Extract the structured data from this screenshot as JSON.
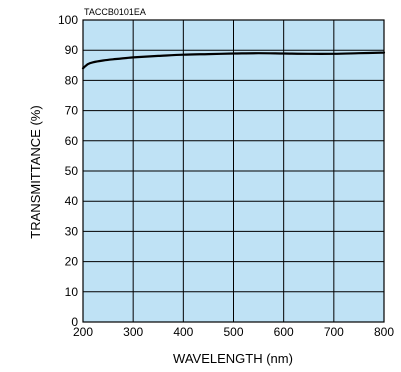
{
  "chart_data": {
    "type": "line",
    "code": "TACCB0101EA",
    "xlabel": "WAVELENGTH (nm)",
    "ylabel": "TRANSMITTANCE (%)",
    "xlim": [
      200,
      800
    ],
    "ylim": [
      0,
      100
    ],
    "xticks": [
      200,
      300,
      400,
      500,
      600,
      700,
      800
    ],
    "yticks": [
      0,
      10,
      20,
      30,
      40,
      50,
      60,
      70,
      80,
      90,
      100
    ],
    "grid": true,
    "legend": "none",
    "colors": {
      "plot_background": "#bfe2f5",
      "grid": "#000000",
      "line": "#000000"
    },
    "series": [
      {
        "x": [
          200,
          210,
          220,
          240,
          260,
          300,
          350,
          400,
          450,
          500,
          550,
          600,
          650,
          700,
          750,
          800
        ],
        "y": [
          84.0,
          85.4,
          86.0,
          86.6,
          87.0,
          87.6,
          88.1,
          88.5,
          88.7,
          88.9,
          89.0,
          88.9,
          88.8,
          88.8,
          89.0,
          89.2
        ]
      }
    ]
  }
}
